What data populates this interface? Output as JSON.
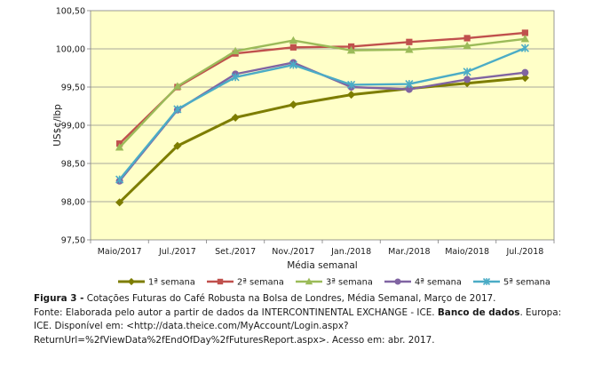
{
  "chart_data": {
    "type": "line",
    "categories": [
      "Maio/2017",
      "Jul./2017",
      "Set./2017",
      "Nov./2017",
      "Jan./2018",
      "Mar./2018",
      "Maio/2018",
      "Jul./2018"
    ],
    "ylabel": "US$¢/lbp",
    "xlabel": "Média semanal",
    "ylim": [
      97.5,
      100.5
    ],
    "yticks": [
      "97,50",
      "98,00",
      "98,50",
      "99,00",
      "99,50",
      "100,00",
      "100,50"
    ],
    "grid": true,
    "legend_position": "bottom",
    "series": [
      {
        "name": "1ª semana",
        "color": "#7d7d00",
        "marker": "diamond",
        "values": [
          97.99,
          98.73,
          99.1,
          99.27,
          99.4,
          99.48,
          99.55,
          99.62
        ]
      },
      {
        "name": "2ª semana",
        "color": "#c0504d",
        "marker": "square",
        "values": [
          98.76,
          99.5,
          99.94,
          100.02,
          100.03,
          100.09,
          100.14,
          100.21
        ]
      },
      {
        "name": "3ª semana",
        "color": "#9bbb59",
        "marker": "triangle",
        "values": [
          98.71,
          99.51,
          99.97,
          100.11,
          99.98,
          99.99,
          100.04,
          100.13
        ]
      },
      {
        "name": "4ª semana",
        "color": "#8064a2",
        "marker": "circle",
        "values": [
          98.27,
          99.2,
          99.67,
          99.82,
          99.5,
          99.47,
          99.6,
          99.69
        ]
      },
      {
        "name": "5ª semana",
        "color": "#4bacc6",
        "marker": "star",
        "values": [
          98.29,
          99.21,
          99.63,
          99.79,
          99.53,
          99.54,
          99.7,
          100.01
        ]
      }
    ]
  },
  "caption": {
    "figure_label": "Figura 3 -",
    "figure_text": " Cotações Futuras do Café Robusta na Bolsa de Londres, Média Semanal, Março de 2017.",
    "source_label": "Fonte: ",
    "source_text_1": "Elaborada pelo autor a partir de dados da INTERCONTINENTAL EXCHANGE - ICE. ",
    "source_bold": "Banco de dados",
    "source_text_2": ". Europa: ICE. Disponível em: <http://data.theice.com/MyAccount/Login.aspx?ReturnUrl=%2fViewData%2fEndOfDay%2fFuturesReport.aspx>. Acesso em: abr. 2017."
  }
}
